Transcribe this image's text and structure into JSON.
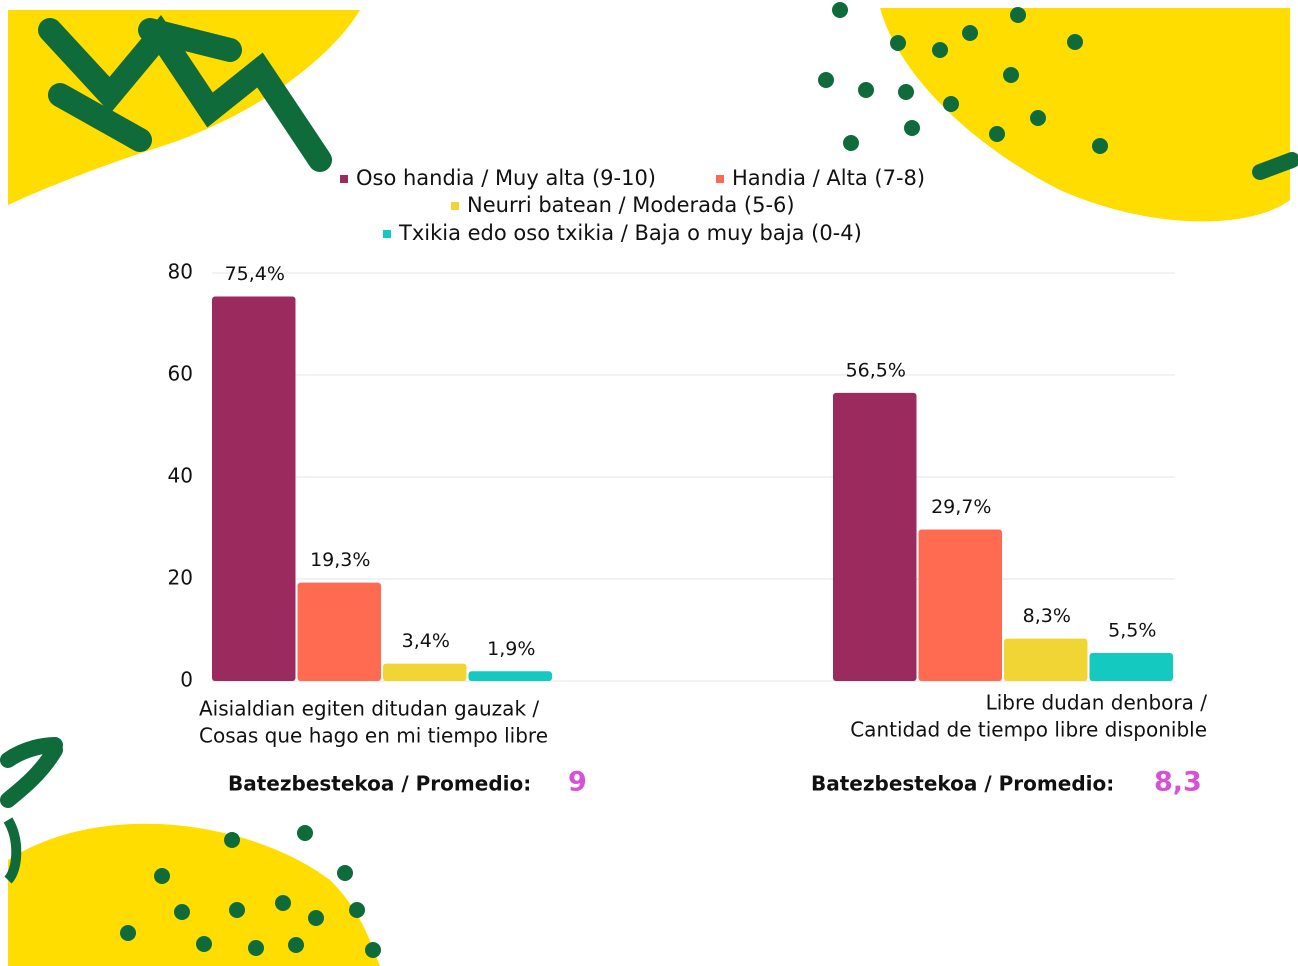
{
  "chart_data": {
    "type": "bar",
    "categories": [
      [
        "Aisialdian egiten ditudan gauzak /",
        "Cosas que hago en mi tiempo libre"
      ],
      [
        "Libre dudan denbora /",
        "Cantidad de tiempo libre disponible"
      ]
    ],
    "series": [
      {
        "name": "Oso handia / Muy alta (9-10)",
        "color": "#9b2a5e",
        "values": [
          75.4,
          56.5
        ],
        "value_labels": [
          "75,4%",
          "56,5%"
        ]
      },
      {
        "name": "Handia / Alta (7-8)",
        "color": "#ff6b50",
        "values": [
          19.3,
          29.7
        ],
        "value_labels": [
          "19,3%",
          "29,7%"
        ]
      },
      {
        "name": "Neurri batean / Moderada (5-6)",
        "color": "#f0d535",
        "values": [
          3.4,
          8.3
        ],
        "value_labels": [
          "3,4%",
          "8,3%"
        ]
      },
      {
        "name": "Txikia edo oso txikia / Baja o muy baja (0-4)",
        "color": "#14c9c0",
        "values": [
          1.9,
          5.5
        ],
        "value_labels": [
          "1,9%",
          "5,5%"
        ]
      }
    ],
    "ylim": [
      0,
      80
    ],
    "yticks": [
      0,
      20,
      40,
      60,
      80
    ],
    "grid": true,
    "legend": "top",
    "averages": {
      "label": "Batezbestekoa / Promedio:",
      "values": [
        9,
        8.3
      ],
      "value_labels": [
        "9",
        "8,3"
      ]
    }
  }
}
